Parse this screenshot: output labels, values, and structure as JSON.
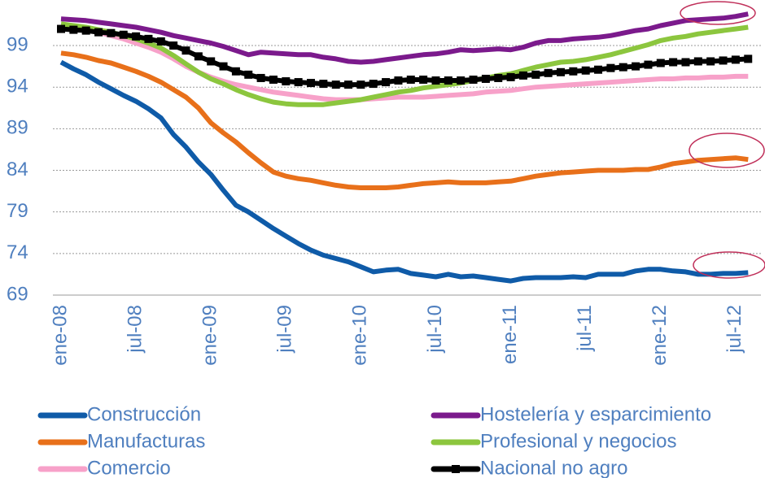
{
  "chart_data": {
    "type": "line",
    "categories": [
      "ene-08",
      null,
      null,
      null,
      null,
      null,
      "jul-08",
      null,
      null,
      null,
      null,
      null,
      "ene-09",
      null,
      null,
      null,
      null,
      null,
      "jul-09",
      null,
      null,
      null,
      null,
      null,
      "ene-10",
      null,
      null,
      null,
      null,
      null,
      "jul-10",
      null,
      null,
      null,
      null,
      null,
      "ene-11",
      null,
      null,
      null,
      null,
      null,
      "jul-11",
      null,
      null,
      null,
      null,
      null,
      "ene-12",
      null,
      null,
      null,
      null,
      null,
      "jul-12",
      null
    ],
    "ylim": [
      69,
      103.5
    ],
    "yticks": [
      69,
      74,
      79,
      84,
      89,
      94,
      99
    ],
    "grid": true,
    "series": [
      {
        "name": "Construcción",
        "color": "#0f5ba8",
        "values": [
          97,
          96.2,
          95.5,
          94.6,
          93.8,
          93,
          92.3,
          91.4,
          90.3,
          88.3,
          86.8,
          85,
          83.5,
          81.6,
          79.8,
          79,
          78,
          77,
          76.1,
          75.2,
          74.4,
          73.8,
          73.4,
          73,
          72.4,
          71.8,
          72,
          72.1,
          71.6,
          71.4,
          71.2,
          71.5,
          71.2,
          71.3,
          71.1,
          70.9,
          70.7,
          71,
          71.1,
          71.1,
          71.1,
          71.2,
          71.1,
          71.5,
          71.5,
          71.5,
          71.9,
          72.1,
          72.1,
          71.9,
          71.8,
          71.5,
          71.5,
          71.6,
          71.6,
          71.7
        ]
      },
      {
        "name": "Hostelería y esparcimiento",
        "color": "#7b1a8c",
        "values": [
          102.2,
          102.1,
          102,
          101.8,
          101.6,
          101.4,
          101.2,
          100.9,
          100.6,
          100.2,
          99.9,
          99.6,
          99.3,
          98.9,
          98.4,
          97.9,
          98.2,
          98.1,
          98,
          97.9,
          97.9,
          97.6,
          97.4,
          97.1,
          97,
          97.1,
          97.3,
          97.5,
          97.7,
          97.9,
          98,
          98.2,
          98.5,
          98.4,
          98.5,
          98.6,
          98.5,
          98.8,
          99.3,
          99.6,
          99.6,
          99.8,
          99.9,
          100,
          100.2,
          100.5,
          100.8,
          101,
          101.4,
          101.7,
          102,
          102.1,
          102.2,
          102.3,
          102.5,
          102.8
        ]
      },
      {
        "name": "Manufacturas",
        "color": "#e8701a",
        "values": [
          98.1,
          97.9,
          97.6,
          97.2,
          96.9,
          96.4,
          95.9,
          95.3,
          94.6,
          93.7,
          92.8,
          91.5,
          89.7,
          88.5,
          87.4,
          86.1,
          84.9,
          83.8,
          83.3,
          83,
          82.8,
          82.5,
          82.2,
          82,
          81.9,
          81.9,
          81.9,
          82,
          82.2,
          82.4,
          82.5,
          82.6,
          82.5,
          82.5,
          82.5,
          82.6,
          82.7,
          83,
          83.3,
          83.5,
          83.7,
          83.8,
          83.9,
          84,
          84,
          84,
          84.1,
          84.1,
          84.4,
          84.8,
          85,
          85.2,
          85.3,
          85.4,
          85.5,
          85.3
        ]
      },
      {
        "name": "Profesional y negocios",
        "color": "#8cc63e",
        "values": [
          101.6,
          101.4,
          101.2,
          100.9,
          100.6,
          100.2,
          99.8,
          99.3,
          98.7,
          97.8,
          96.8,
          95.8,
          95,
          94.4,
          93.7,
          93.1,
          92.6,
          92.2,
          92,
          91.9,
          91.9,
          91.9,
          92.1,
          92.3,
          92.5,
          92.8,
          93.1,
          93.4,
          93.6,
          93.9,
          94.1,
          94.3,
          94.5,
          94.8,
          95.1,
          95.4,
          95.6,
          96,
          96.4,
          96.7,
          97,
          97.1,
          97.3,
          97.6,
          97.9,
          98.3,
          98.7,
          99.1,
          99.6,
          99.9,
          100.1,
          100.4,
          100.6,
          100.8,
          101,
          101.2
        ]
      },
      {
        "name": "Comercio",
        "color": "#f7a1c9",
        "values": [
          101.5,
          101.2,
          100.9,
          100.6,
          100.2,
          99.8,
          99.3,
          98.8,
          98.2,
          97.4,
          96.5,
          95.8,
          95.2,
          94.7,
          94.3,
          94,
          93.7,
          93.4,
          93.2,
          93,
          92.8,
          92.6,
          92.5,
          92.5,
          92.5,
          92.6,
          92.7,
          92.8,
          92.8,
          92.8,
          92.9,
          93,
          93.1,
          93.2,
          93.4,
          93.5,
          93.6,
          93.8,
          94,
          94.1,
          94.2,
          94.3,
          94.4,
          94.5,
          94.6,
          94.7,
          94.8,
          94.9,
          95,
          95,
          95.1,
          95.1,
          95.2,
          95.2,
          95.3,
          95.3
        ]
      },
      {
        "name": "Nacional no agro",
        "color": "#000000",
        "marker": "square",
        "values": [
          101,
          100.9,
          100.8,
          100.6,
          100.5,
          100.3,
          100.1,
          99.8,
          99.5,
          99,
          98.4,
          97.7,
          97.1,
          96.5,
          95.9,
          95.5,
          95.1,
          94.9,
          94.7,
          94.6,
          94.5,
          94.4,
          94.3,
          94.3,
          94.3,
          94.4,
          94.6,
          94.8,
          94.9,
          94.9,
          94.8,
          94.8,
          94.8,
          94.9,
          95,
          95.1,
          95.2,
          95.4,
          95.5,
          95.7,
          95.8,
          95.9,
          96,
          96.1,
          96.3,
          96.4,
          96.5,
          96.7,
          96.9,
          97,
          97,
          97.1,
          97.1,
          97.2,
          97.3,
          97.4
        ]
      }
    ]
  }
}
